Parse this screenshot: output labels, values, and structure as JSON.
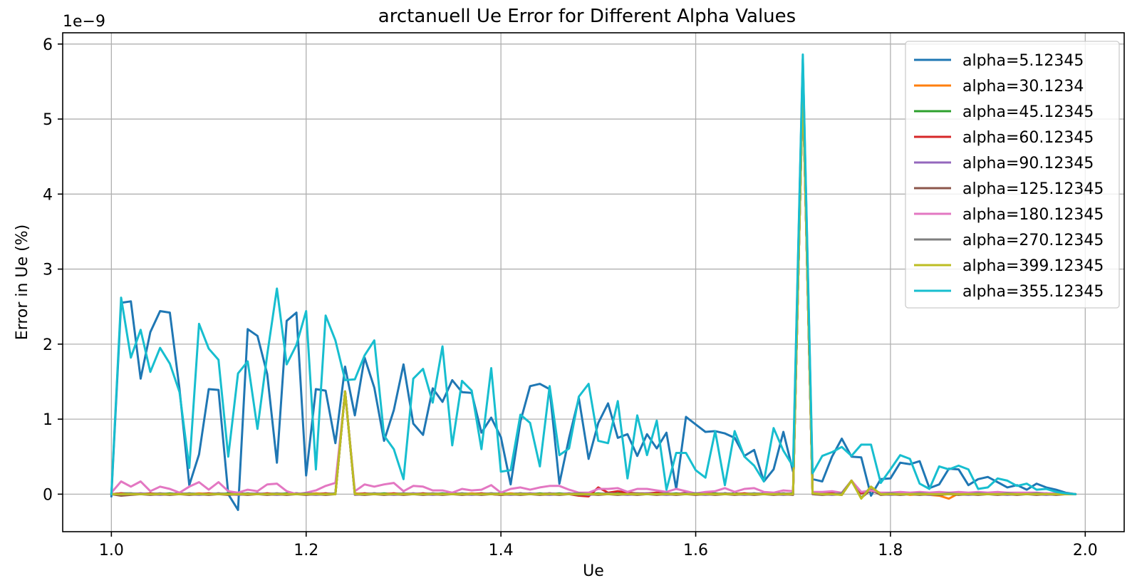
{
  "chart_data": {
    "type": "line",
    "title": "arctanuell Ue Error for Different Alpha Values",
    "xlabel": "Ue",
    "ylabel": "Error in Ue (%)",
    "y_offset_text": "1e−9",
    "xlim": [
      0.95,
      2.04
    ],
    "ylim": [
      -0.5,
      6.15
    ],
    "y_scale_exponent": -9,
    "grid": true,
    "legend_position": "upper right",
    "x_ticks": [
      1.0,
      1.2,
      1.4,
      1.6,
      1.8,
      2.0
    ],
    "x_tick_labels": [
      "1.0",
      "1.2",
      "1.4",
      "1.6",
      "1.8",
      "2.0"
    ],
    "y_ticks": [
      0,
      1,
      2,
      3,
      4,
      5,
      6
    ],
    "y_tick_labels": [
      "0",
      "1",
      "2",
      "3",
      "4",
      "5",
      "6"
    ],
    "x": [
      1.0,
      1.01,
      1.02,
      1.03,
      1.04,
      1.05,
      1.06,
      1.07,
      1.08,
      1.09,
      1.1,
      1.11,
      1.12,
      1.13,
      1.14,
      1.15,
      1.16,
      1.17,
      1.18,
      1.19,
      1.2,
      1.21,
      1.22,
      1.23,
      1.24,
      1.25,
      1.26,
      1.27,
      1.28,
      1.29,
      1.3,
      1.31,
      1.32,
      1.33,
      1.34,
      1.35,
      1.36,
      1.37,
      1.38,
      1.39,
      1.4,
      1.41,
      1.42,
      1.43,
      1.44,
      1.45,
      1.46,
      1.47,
      1.48,
      1.49,
      1.5,
      1.51,
      1.52,
      1.53,
      1.54,
      1.55,
      1.56,
      1.57,
      1.58,
      1.59,
      1.6,
      1.61,
      1.62,
      1.63,
      1.64,
      1.65,
      1.66,
      1.67,
      1.68,
      1.69,
      1.7,
      1.71,
      1.72,
      1.73,
      1.74,
      1.75,
      1.76,
      1.77,
      1.78,
      1.79,
      1.8,
      1.81,
      1.82,
      1.83,
      1.84,
      1.85,
      1.86,
      1.87,
      1.88,
      1.89,
      1.9,
      1.91,
      1.92,
      1.93,
      1.94,
      1.95,
      1.96,
      1.97,
      1.98,
      1.99
    ],
    "series": [
      {
        "name": "alpha=5.12345",
        "color": "#1f77b4",
        "values": [
          -0.03,
          2.55,
          2.57,
          1.54,
          2.16,
          2.44,
          2.42,
          1.4,
          0.12,
          0.53,
          1.4,
          1.39,
          0.0,
          -0.21,
          2.2,
          2.11,
          1.6,
          0.42,
          2.31,
          2.42,
          0.25,
          1.4,
          1.38,
          0.68,
          1.7,
          1.05,
          1.82,
          1.42,
          0.71,
          1.12,
          1.73,
          0.94,
          0.79,
          1.41,
          1.23,
          1.52,
          1.36,
          1.35,
          0.82,
          1.02,
          0.76,
          0.13,
          0.97,
          1.44,
          1.47,
          1.4,
          0.14,
          0.75,
          1.28,
          0.47,
          0.95,
          1.21,
          0.75,
          0.8,
          0.51,
          0.8,
          0.61,
          0.82,
          0.07,
          1.03,
          0.93,
          0.83,
          0.84,
          0.81,
          0.75,
          0.51,
          0.59,
          0.17,
          0.33,
          0.83,
          0.3,
          5.8,
          0.2,
          0.17,
          0.5,
          0.74,
          0.5,
          0.49,
          -0.02,
          0.2,
          0.21,
          0.42,
          0.4,
          0.44,
          0.08,
          0.13,
          0.34,
          0.33,
          0.12,
          0.2,
          0.23,
          0.16,
          0.09,
          0.12,
          0.06,
          0.14,
          0.09,
          0.06,
          0.02,
          0.0
        ]
      },
      {
        "name": "alpha=30.1234",
        "color": "#ff7f0e",
        "values": [
          0,
          0.01,
          0,
          0.01,
          0,
          0.01,
          0,
          0.01,
          0,
          0.01,
          0,
          0.01,
          0,
          0.01,
          0,
          0.01,
          0,
          0.01,
          0,
          0.01,
          0,
          0.01,
          0,
          0.01,
          1.37,
          0.01,
          0,
          0.01,
          0,
          0.01,
          0,
          0.01,
          0,
          0.01,
          0,
          0.01,
          0,
          0.01,
          0,
          0.01,
          0,
          0.01,
          0,
          0.01,
          0,
          0.01,
          0,
          0.01,
          0,
          0.01,
          0,
          0.01,
          0,
          0.01,
          0,
          0.01,
          0,
          0.01,
          0,
          0.01,
          0,
          0.01,
          0,
          0.01,
          0,
          0.01,
          0,
          0.01,
          0,
          0.01,
          0,
          5.45,
          0.02,
          0.01,
          0.01,
          -0.01,
          0.18,
          0.02,
          0.05,
          0.01,
          0,
          0.01,
          -0.01,
          0.0,
          -0.01,
          -0.02,
          -0.06,
          0.01,
          0.0,
          0.01,
          0.0,
          0.01,
          0.0,
          0.01,
          0.0,
          0.01,
          0.0,
          0.01,
          0.0,
          0.0
        ]
      },
      {
        "name": "alpha=45.12345",
        "color": "#2ca02c",
        "values": [
          0,
          0.01,
          0.01,
          0,
          0.01,
          0,
          0.01,
          0,
          0.01,
          0,
          0.01,
          0,
          0.01,
          0,
          0.01,
          0,
          0.01,
          0,
          0.01,
          0,
          0.01,
          0,
          0.01,
          0,
          1.37,
          0,
          0.01,
          0,
          0.01,
          0,
          0.01,
          0,
          0.01,
          0,
          0.01,
          0,
          0.01,
          0,
          0.01,
          0,
          0.01,
          0,
          0.01,
          0,
          0.01,
          0,
          0.01,
          0,
          0.01,
          0,
          0.01,
          0,
          0.01,
          0,
          0.01,
          0,
          0.01,
          0,
          0.01,
          0,
          0.01,
          0,
          0.01,
          0,
          0.01,
          0,
          0.01,
          0,
          0.01,
          0,
          0.01,
          5.45,
          0.01,
          0,
          0.01,
          0,
          0.18,
          0.01,
          0.05,
          0,
          0.01,
          0,
          0.01,
          0,
          0.01,
          0,
          0.01,
          0,
          0.01,
          0,
          0.01,
          0,
          0.01,
          0,
          0.01,
          0,
          0.01,
          0,
          0.01,
          0
        ]
      },
      {
        "name": "alpha=60.12345",
        "color": "#d62728",
        "values": [
          0,
          0.01,
          0,
          0,
          0.01,
          0,
          0,
          0.01,
          0,
          0,
          0.01,
          0,
          0,
          0.01,
          0,
          0,
          0.01,
          0,
          0,
          0.01,
          0,
          0,
          0.01,
          0,
          1.37,
          0,
          0.01,
          0,
          0,
          0.01,
          0,
          0,
          0.01,
          0,
          0,
          0.01,
          0,
          0,
          0.01,
          0,
          -0.01,
          0,
          0.01,
          0,
          0,
          0.01,
          0,
          0,
          -0.02,
          -0.03,
          0.09,
          0.02,
          0.04,
          0.02,
          0.01,
          0.01,
          0.02,
          0.01,
          0.0,
          0.02,
          0.0,
          0.01,
          0.0,
          0.01,
          0.0,
          0.01,
          0.0,
          0.01,
          0.0,
          0.01,
          0.0,
          5.45,
          0.01,
          0,
          0.01,
          0,
          0.18,
          0.01,
          0.05,
          0,
          0.01,
          0,
          0.01,
          0,
          0.01,
          0,
          0.01,
          0,
          0.01,
          0,
          0.01,
          0,
          0.01,
          0,
          0.01,
          0,
          0.01,
          0,
          0.01,
          0
        ]
      },
      {
        "name": "alpha=90.12345",
        "color": "#9467bd",
        "values": [
          0,
          -0.01,
          0,
          0.01,
          0,
          -0.01,
          0,
          0.01,
          0,
          -0.01,
          0,
          0.01,
          0,
          -0.01,
          0,
          0.01,
          0,
          -0.01,
          0,
          0.01,
          0,
          -0.01,
          0,
          0.01,
          1.37,
          -0.01,
          0,
          0.01,
          0,
          -0.01,
          0,
          0.01,
          0,
          -0.01,
          0,
          0.01,
          0,
          -0.01,
          0,
          0.01,
          0,
          -0.01,
          0,
          0.01,
          0,
          -0.01,
          0,
          0.01,
          0,
          -0.01,
          0,
          0.01,
          0,
          -0.01,
          0,
          0.01,
          0,
          -0.01,
          0,
          0.01,
          0,
          -0.01,
          0,
          0.01,
          0,
          -0.01,
          0,
          0.01,
          0,
          -0.01,
          0,
          5.45,
          0.01,
          0,
          -0.01,
          0,
          0.18,
          -0.05,
          0.06,
          0,
          -0.01,
          0,
          0.01,
          0,
          -0.01,
          0,
          0.01,
          0,
          -0.01,
          0,
          0.01,
          0,
          -0.01,
          0,
          0.01,
          0,
          -0.01,
          0,
          0.01,
          0
        ]
      },
      {
        "name": "alpha=125.12345",
        "color": "#8c564b",
        "values": [
          0,
          -0.02,
          -0.01,
          0,
          -0.01,
          0,
          -0.01,
          0,
          -0.01,
          0,
          -0.01,
          0,
          -0.01,
          0,
          -0.01,
          0,
          -0.01,
          0,
          -0.01,
          0,
          -0.01,
          0,
          -0.01,
          0,
          1.37,
          0,
          -0.01,
          0,
          -0.01,
          0,
          -0.01,
          0,
          -0.01,
          0,
          -0.01,
          0,
          -0.01,
          0,
          -0.01,
          0,
          -0.01,
          0,
          -0.01,
          0,
          -0.01,
          0,
          -0.01,
          0,
          -0.01,
          0,
          -0.01,
          0,
          -0.01,
          0,
          -0.01,
          0,
          -0.01,
          0,
          -0.01,
          0,
          -0.01,
          0,
          -0.01,
          0,
          -0.01,
          0,
          -0.01,
          0,
          -0.01,
          0,
          -0.01,
          5.45,
          0,
          -0.01,
          0,
          -0.01,
          0.18,
          -0.05,
          0.06,
          -0.01,
          0,
          -0.01,
          0,
          -0.01,
          0,
          -0.01,
          0,
          -0.01,
          0,
          -0.01,
          0,
          -0.01,
          0,
          -0.01,
          0,
          -0.01,
          0,
          -0.01,
          0,
          0
        ]
      },
      {
        "name": "alpha=180.12345",
        "color": "#e377c2",
        "values": [
          0.02,
          0.17,
          0.1,
          0.17,
          0.04,
          0.1,
          0.07,
          0.02,
          0.1,
          0.16,
          0.06,
          0.16,
          0.04,
          0.02,
          0.06,
          0.04,
          0.13,
          0.14,
          0.04,
          0.0,
          0.02,
          0.05,
          0.11,
          0.15,
          1.35,
          0.04,
          0.13,
          0.1,
          0.13,
          0.15,
          0.04,
          0.11,
          0.1,
          0.05,
          0.05,
          0.02,
          0.07,
          0.05,
          0.06,
          0.12,
          0.02,
          0.07,
          0.09,
          0.06,
          0.09,
          0.11,
          0.11,
          0.06,
          0.02,
          0.02,
          0.07,
          0.07,
          0.08,
          0.03,
          0.07,
          0.07,
          0.05,
          0.03,
          0.07,
          0.04,
          0.01,
          0.03,
          0.04,
          0.08,
          0.03,
          0.07,
          0.08,
          0.03,
          0.02,
          0.05,
          0.04,
          5.45,
          0.03,
          0.03,
          0.04,
          0.02,
          0.18,
          0.03,
          0.05,
          0.02,
          0.02,
          0.03,
          0.02,
          0.03,
          0.02,
          0.03,
          0.02,
          0.03,
          0.02,
          0.03,
          0.02,
          0.03,
          0.02,
          0.02,
          0.02,
          0.02,
          0.01,
          0.01,
          0.01,
          0.0
        ]
      },
      {
        "name": "alpha=270.12345",
        "color": "#7f7f7f",
        "values": [
          0,
          0,
          0.01,
          0,
          0,
          0.01,
          0,
          0,
          0.01,
          0,
          0,
          0.01,
          0,
          0,
          0.01,
          0,
          0,
          0.01,
          0,
          0,
          0.01,
          0,
          0,
          0.01,
          1.37,
          0,
          0,
          0.01,
          0,
          0,
          0.01,
          0,
          0,
          0.01,
          0,
          0,
          0.01,
          0,
          0,
          0.01,
          0,
          0,
          0.01,
          0,
          0,
          0.01,
          0,
          0,
          0.01,
          0,
          0,
          0.01,
          0,
          0,
          0.01,
          0,
          0,
          0.01,
          0,
          0,
          0.01,
          0,
          0,
          0.01,
          0,
          0,
          0.01,
          0,
          0,
          0.01,
          0,
          5.45,
          0.01,
          0,
          0,
          0.01,
          0.18,
          -0.05,
          0.1,
          0,
          0.01,
          0,
          0,
          0.01,
          0,
          0,
          0.01,
          0,
          0,
          0.01,
          0,
          0,
          0.01,
          0,
          0,
          0.01,
          0,
          0,
          0.01,
          0
        ]
      },
      {
        "name": "alpha=399.12345",
        "color": "#bcbd22",
        "values": [
          0,
          0,
          0,
          0,
          0,
          0,
          0,
          0,
          0,
          0,
          0,
          0,
          0,
          0,
          0,
          0,
          0,
          0,
          0,
          0,
          0,
          0,
          0,
          0,
          1.37,
          0,
          0,
          0,
          0,
          0,
          0,
          0,
          0,
          0,
          0,
          0,
          0,
          0,
          0,
          0,
          0,
          0,
          0,
          0,
          0,
          0,
          0,
          0,
          0,
          0,
          0,
          0,
          0,
          0,
          0,
          0,
          0,
          0,
          0,
          0,
          0,
          0,
          0,
          0,
          0,
          0,
          0,
          0,
          0,
          0,
          0,
          5.45,
          0.01,
          0,
          0,
          -0.01,
          0.18,
          -0.06,
          0.1,
          0,
          0,
          0,
          0,
          0,
          0,
          0,
          0,
          0,
          0,
          0,
          0,
          0,
          0,
          0,
          0,
          0,
          0,
          0,
          0,
          0
        ]
      },
      {
        "name": "alpha=355.12345",
        "color": "#17becf",
        "values": [
          0.0,
          2.62,
          1.82,
          2.19,
          1.63,
          1.95,
          1.74,
          1.36,
          0.35,
          2.27,
          1.94,
          1.79,
          0.5,
          1.61,
          1.77,
          0.87,
          1.86,
          2.74,
          1.73,
          1.99,
          2.44,
          0.33,
          2.38,
          2.05,
          1.52,
          1.53,
          1.85,
          2.05,
          0.78,
          0.6,
          0.2,
          1.54,
          1.67,
          1.22,
          1.97,
          0.65,
          1.51,
          1.38,
          0.6,
          1.68,
          0.3,
          0.32,
          1.06,
          0.95,
          0.37,
          1.44,
          0.52,
          0.61,
          1.3,
          1.47,
          0.71,
          0.68,
          1.24,
          0.21,
          1.05,
          0.52,
          0.98,
          0.06,
          0.55,
          0.55,
          0.32,
          0.22,
          0.84,
          0.12,
          0.84,
          0.5,
          0.38,
          0.17,
          0.88,
          0.58,
          0.37,
          5.86,
          0.28,
          0.51,
          0.56,
          0.63,
          0.51,
          0.66,
          0.66,
          0.15,
          0.33,
          0.52,
          0.47,
          0.14,
          0.07,
          0.37,
          0.33,
          0.38,
          0.33,
          0.07,
          0.09,
          0.21,
          0.18,
          0.11,
          0.14,
          0.06,
          0.07,
          0.03,
          0.01,
          0.0
        ]
      }
    ]
  }
}
